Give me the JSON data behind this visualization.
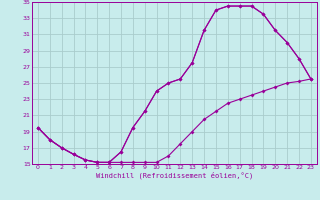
{
  "xlabel": "Windchill (Refroidissement éolien,°C)",
  "bg_color": "#c8ecec",
  "line_color": "#990099",
  "grid_color": "#aacccc",
  "xlim": [
    -0.5,
    23.5
  ],
  "ylim": [
    15,
    35
  ],
  "xticks": [
    0,
    1,
    2,
    3,
    4,
    5,
    6,
    7,
    8,
    9,
    10,
    11,
    12,
    13,
    14,
    15,
    16,
    17,
    18,
    19,
    20,
    21,
    22,
    23
  ],
  "yticks": [
    15,
    17,
    19,
    21,
    23,
    25,
    27,
    29,
    31,
    33,
    35
  ],
  "line1_x": [
    0,
    1,
    2,
    3,
    4,
    5,
    6,
    7,
    8,
    9,
    10,
    11,
    12,
    13,
    14,
    15,
    16,
    17,
    18,
    19,
    20,
    21,
    22,
    23
  ],
  "line1_y": [
    19.5,
    18.0,
    17.0,
    16.2,
    15.5,
    15.2,
    15.2,
    15.2,
    15.2,
    15.2,
    15.2,
    16.0,
    17.5,
    19.0,
    20.5,
    21.5,
    22.5,
    23.0,
    23.5,
    24.0,
    24.5,
    25.0,
    25.2,
    25.5
  ],
  "line2_x": [
    0,
    1,
    2,
    3,
    4,
    5,
    6,
    7,
    8,
    9,
    10,
    11,
    12,
    13,
    14,
    15,
    16,
    17,
    18,
    19,
    20,
    21,
    22,
    23
  ],
  "line2_y": [
    19.5,
    18.0,
    17.0,
    16.2,
    15.5,
    15.2,
    15.2,
    16.5,
    19.5,
    21.5,
    24.0,
    25.0,
    25.5,
    27.5,
    31.5,
    34.0,
    34.5,
    34.5,
    34.5,
    33.5,
    31.5,
    30.0,
    28.0,
    25.5
  ],
  "line3_x": [
    0,
    1,
    2,
    3,
    4,
    5,
    6,
    7,
    8,
    9,
    10,
    11,
    12,
    13,
    14,
    15,
    16,
    17,
    18,
    19,
    20,
    21,
    22,
    23
  ],
  "line3_y": [
    19.5,
    18.0,
    17.0,
    16.2,
    15.5,
    15.2,
    15.2,
    16.5,
    19.5,
    21.5,
    24.0,
    25.0,
    25.5,
    27.5,
    31.5,
    34.0,
    34.5,
    34.5,
    34.5,
    33.5,
    31.5,
    30.0,
    28.0,
    25.5
  ]
}
